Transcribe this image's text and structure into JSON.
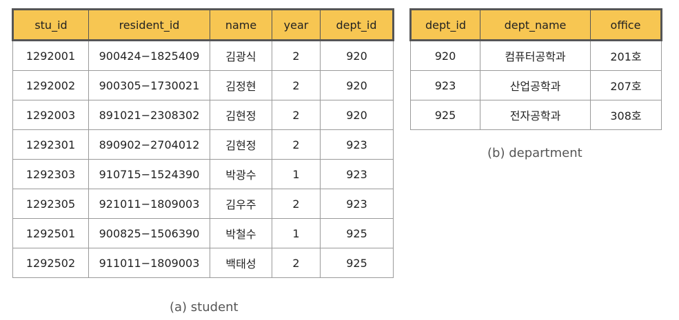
{
  "student": {
    "caption": "(a) student",
    "headers": [
      "stu_id",
      "resident_id",
      "name",
      "year",
      "dept_id"
    ],
    "rows": [
      [
        "1292001",
        "900424−1825409",
        "김광식",
        "2",
        "920"
      ],
      [
        "1292002",
        "900305−1730021",
        "김정현",
        "2",
        "920"
      ],
      [
        "1292003",
        "891021−2308302",
        "김현정",
        "2",
        "920"
      ],
      [
        "1292301",
        "890902−2704012",
        "김현정",
        "2",
        "923"
      ],
      [
        "1292303",
        "910715−1524390",
        "박광수",
        "1",
        "923"
      ],
      [
        "1292305",
        "921011−1809003",
        "김우주",
        "2",
        "923"
      ],
      [
        "1292501",
        "900825−1506390",
        "박철수",
        "1",
        "925"
      ],
      [
        "1292502",
        "911011−1809003",
        "백태성",
        "2",
        "925"
      ]
    ]
  },
  "department": {
    "caption": "(b) department",
    "headers": [
      "dept_id",
      "dept_name",
      "office"
    ],
    "rows": [
      [
        "920",
        "컴퓨터공학과",
        "201호"
      ],
      [
        "923",
        "산업공학과",
        "207호"
      ],
      [
        "925",
        "전자공학과",
        "308호"
      ]
    ]
  },
  "colors": {
    "header_bg": "#f7c652",
    "header_border": "#555555",
    "cell_border": "#999999"
  }
}
